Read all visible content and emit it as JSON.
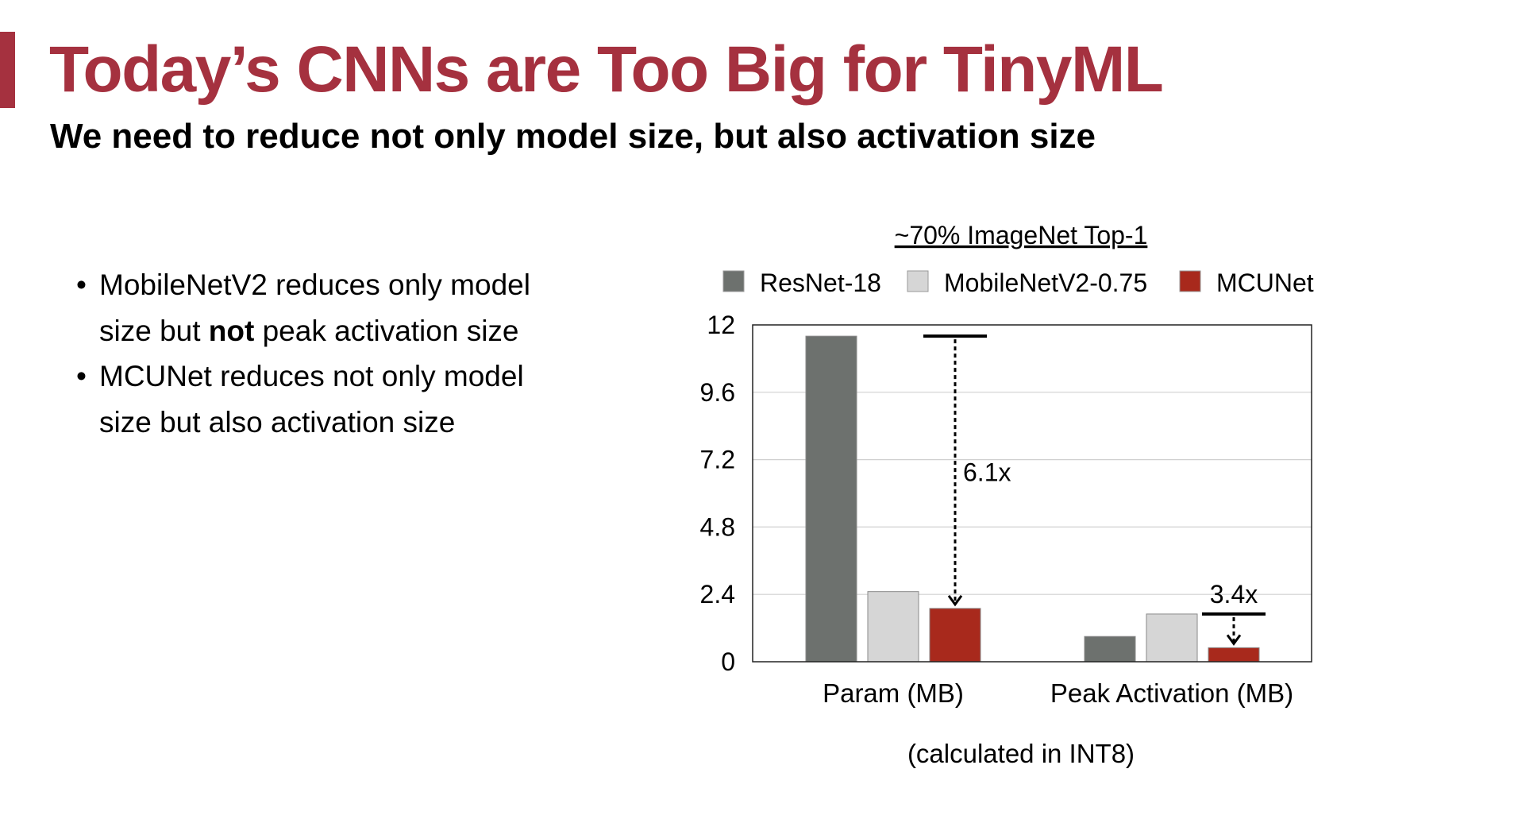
{
  "slide": {
    "title": "Today’s CNNs are Too Big for TinyML",
    "subtitle": "We need to reduce not only model size, but also activation size"
  },
  "bullets": [
    {
      "lines": [
        [
          {
            "text": "MobileNetV2 reduces only model",
            "bold": false
          }
        ],
        [
          {
            "text": "size but ",
            "bold": false
          },
          {
            "text": "not",
            "bold": true
          },
          {
            "text": " peak activation size",
            "bold": false
          }
        ]
      ]
    },
    {
      "lines": [
        [
          {
            "text": "MCUNet reduces not only model",
            "bold": false
          }
        ],
        [
          {
            "text": "size but also activation size",
            "bold": false
          }
        ]
      ]
    }
  ],
  "chart_data": {
    "type": "bar",
    "title": "~70% ImageNet Top-1",
    "note": "(calculated in INT8)",
    "categories": [
      "Param (MB)",
      "Peak Activation (MB)"
    ],
    "series": [
      {
        "name": "ResNet-18",
        "color": "#6d716e",
        "values": [
          11.6,
          0.9
        ]
      },
      {
        "name": "MobileNetV2-0.75",
        "color": "#d6d6d6",
        "values": [
          2.5,
          1.7
        ]
      },
      {
        "name": "MCUNet",
        "color": "#a8291c",
        "values": [
          1.9,
          0.5
        ]
      }
    ],
    "ylim": [
      0,
      12
    ],
    "yticks": [
      "0",
      "2.4",
      "4.8",
      "7.2",
      "9.6",
      "12"
    ],
    "grid": true,
    "legend_position": "top",
    "annotations": [
      {
        "label": "6.1x",
        "category": 0,
        "from": 11.6,
        "to": 1.9
      },
      {
        "label": "3.4x",
        "category": 1,
        "from": 1.7,
        "to": 0.5
      }
    ]
  }
}
